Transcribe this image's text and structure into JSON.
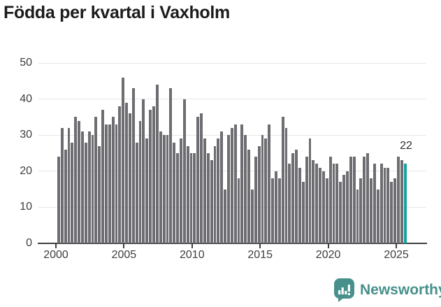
{
  "page": {
    "title": "Födda per kvartal i Vaxholm"
  },
  "annotation": {
    "last_value_label": "22"
  },
  "branding": {
    "logo_text": "Newsworthy",
    "logo_icon": "bar-chart-speech-bubble-icon"
  },
  "colors": {
    "bar": "#6d6d72",
    "highlight": "#16a39e",
    "logo": "#47908b",
    "grid": "#e7e7e9",
    "axis_line": "#3f3f42",
    "axis_text": "#3e3e40",
    "title_text": "#1b1b1d"
  },
  "chart_data": {
    "type": "bar",
    "title": "Födda per kvartal i Vaxholm",
    "frequency": "quarterly",
    "x_start": "2000-Q1",
    "x_end": "2025-Q3",
    "xlabel": "",
    "ylabel": "",
    "xticks": [
      2000,
      2005,
      2010,
      2015,
      2020,
      2025
    ],
    "yticks": [
      0,
      10,
      20,
      30,
      40,
      50
    ],
    "ylim": [
      0,
      50
    ],
    "grid": true,
    "legend": false,
    "values": [
      24,
      32,
      26,
      32,
      28,
      35,
      34,
      31,
      28,
      31,
      30,
      35,
      27,
      37,
      33,
      33,
      35,
      33,
      38,
      46,
      39,
      36,
      43,
      28,
      34,
      40,
      29,
      37,
      38,
      44,
      31,
      30,
      30,
      43,
      28,
      25,
      29,
      40,
      27,
      25,
      25,
      35,
      36,
      29,
      25,
      23,
      27,
      29,
      31,
      15,
      30,
      32,
      33,
      18,
      33,
      30,
      26,
      15,
      24,
      27,
      30,
      29,
      33,
      18,
      20,
      18,
      35,
      32,
      22,
      25,
      26,
      21,
      17,
      24,
      29,
      23,
      22,
      21,
      20,
      18,
      24,
      22,
      22,
      17,
      19,
      20,
      24,
      24,
      15,
      18,
      24,
      25,
      18,
      22,
      15,
      22,
      21,
      21,
      17,
      18,
      24,
      23,
      22
    ],
    "highlight_index": 102,
    "highlight_value": 22,
    "bar_color": "#6d6d72",
    "highlight_color": "#16a39e"
  }
}
